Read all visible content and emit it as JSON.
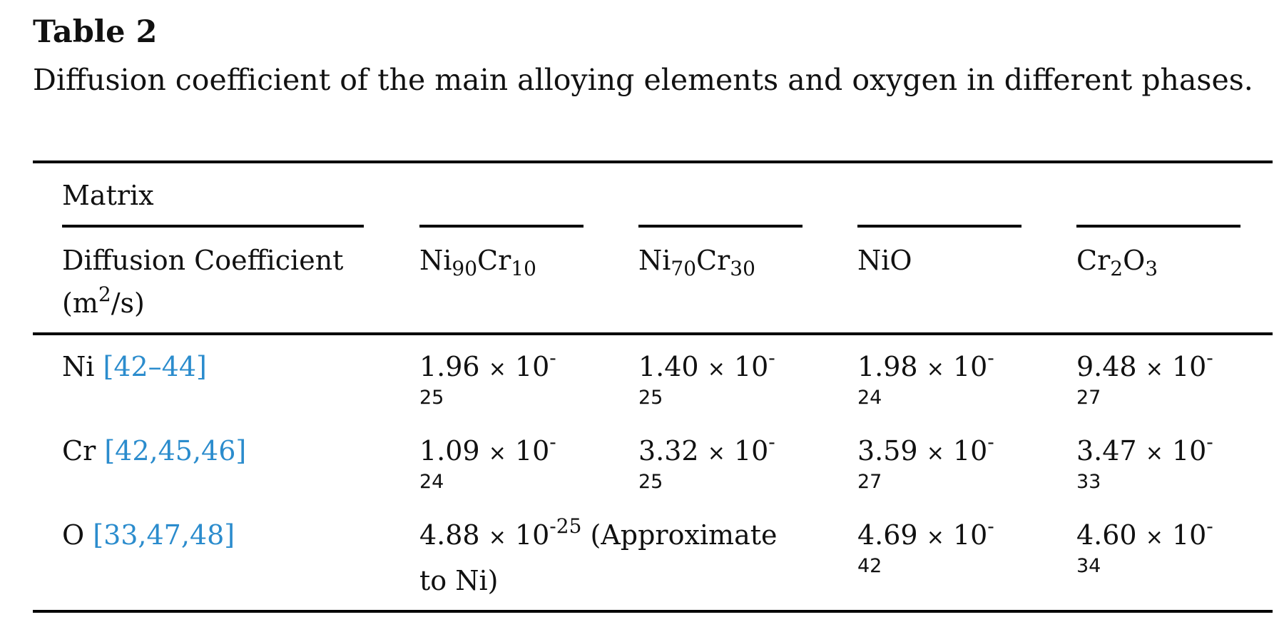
{
  "table_label": "Table 2",
  "caption": "Diffusion coefficient of the main alloying elements and oxygen in different phases.",
  "header": {
    "matrix_label": "Matrix",
    "row_header_line1": "Diffusion Coefficient",
    "row_header_line2_pre": "(m",
    "row_header_line2_sup": "2",
    "row_header_line2_post": "/s)",
    "columns": [
      {
        "base1": "Ni",
        "sub1": "90",
        "base2": "Cr",
        "sub2": "10"
      },
      {
        "base1": "Ni",
        "sub1": "70",
        "base2": "Cr",
        "sub2": "30"
      },
      {
        "base1": "NiO",
        "sub1": "",
        "base2": "",
        "sub2": ""
      },
      {
        "base1": "Cr",
        "sub1": "2",
        "base2": "O",
        "sub2": "3"
      }
    ]
  },
  "rows": [
    {
      "element": "Ni",
      "ref": "[42–44]",
      "values": [
        {
          "mantissa": "1.96",
          "times": "×",
          "base": "10",
          "sign": "-",
          "exp": "25"
        },
        {
          "mantissa": "1.40",
          "times": "×",
          "base": "10",
          "sign": "-",
          "exp": "25"
        },
        {
          "mantissa": "1.98",
          "times": "×",
          "base": "10",
          "sign": "-",
          "exp": "24"
        },
        {
          "mantissa": "9.48",
          "times": "×",
          "base": "10",
          "sign": "-",
          "exp": "27"
        }
      ]
    },
    {
      "element": "Cr",
      "ref": "[42,45,46]",
      "values": [
        {
          "mantissa": "1.09",
          "times": "×",
          "base": "10",
          "sign": "-",
          "exp": "24"
        },
        {
          "mantissa": "3.32",
          "times": "×",
          "base": "10",
          "sign": "-",
          "exp": "25"
        },
        {
          "mantissa": "3.59",
          "times": "×",
          "base": "10",
          "sign": "-",
          "exp": "27"
        },
        {
          "mantissa": "3.47",
          "times": "×",
          "base": "10",
          "sign": "-",
          "exp": "33"
        }
      ]
    },
    {
      "element": "O",
      "ref": "[33,47,48]",
      "merged": {
        "mantissa": "4.88",
        "times": "×",
        "base": "10",
        "exp": "-25",
        "note_line1": "(Approximate",
        "note_line2": "to Ni)"
      },
      "values": [
        {
          "mantissa": "4.69",
          "times": "×",
          "base": "10",
          "sign": "-",
          "exp": "42"
        },
        {
          "mantissa": "4.60",
          "times": "×",
          "base": "10",
          "sign": "-",
          "exp": "34"
        }
      ]
    }
  ]
}
